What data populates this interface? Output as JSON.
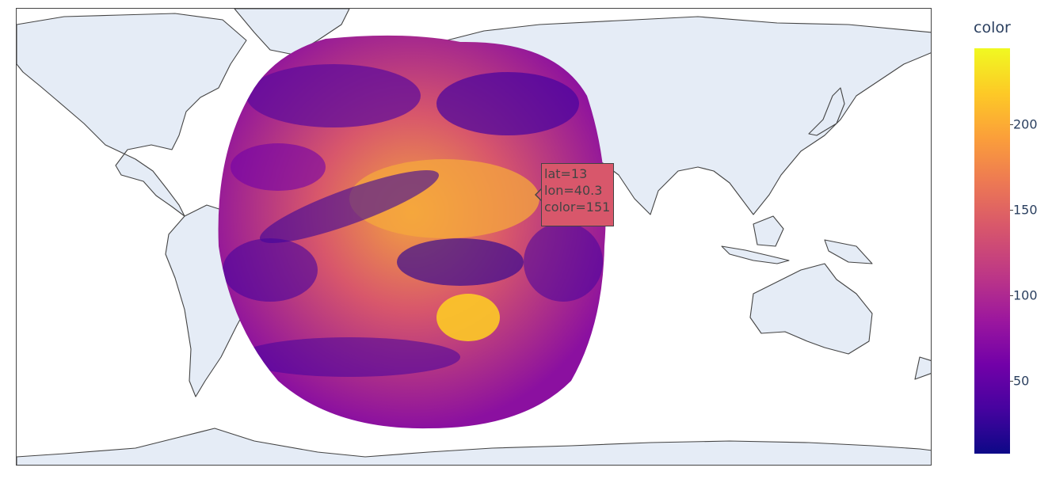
{
  "map": {
    "projection": "equirectangular",
    "land_color": "#e5ecf6",
    "coastline_color": "#444444",
    "ocean_color": "#ffffff"
  },
  "data_layer": {
    "type": "scattergeo-image",
    "colorscale": [
      "#0d0887",
      "#46039f",
      "#7201a8",
      "#9c179e",
      "#bd3786",
      "#d8576b",
      "#ed7953",
      "#fb9f3a",
      "#fdca26",
      "#f0f921"
    ],
    "color_range": [
      7,
      245
    ]
  },
  "colorbar": {
    "title": "color",
    "ticks": [
      {
        "label": "50",
        "value": 50
      },
      {
        "label": "100",
        "value": 100
      },
      {
        "label": "150",
        "value": 150
      },
      {
        "label": "200",
        "value": 200
      }
    ]
  },
  "tooltip": {
    "lat": "lat=13",
    "lon": "lon=40.3",
    "color": "color=151",
    "background": "#d8576b"
  }
}
